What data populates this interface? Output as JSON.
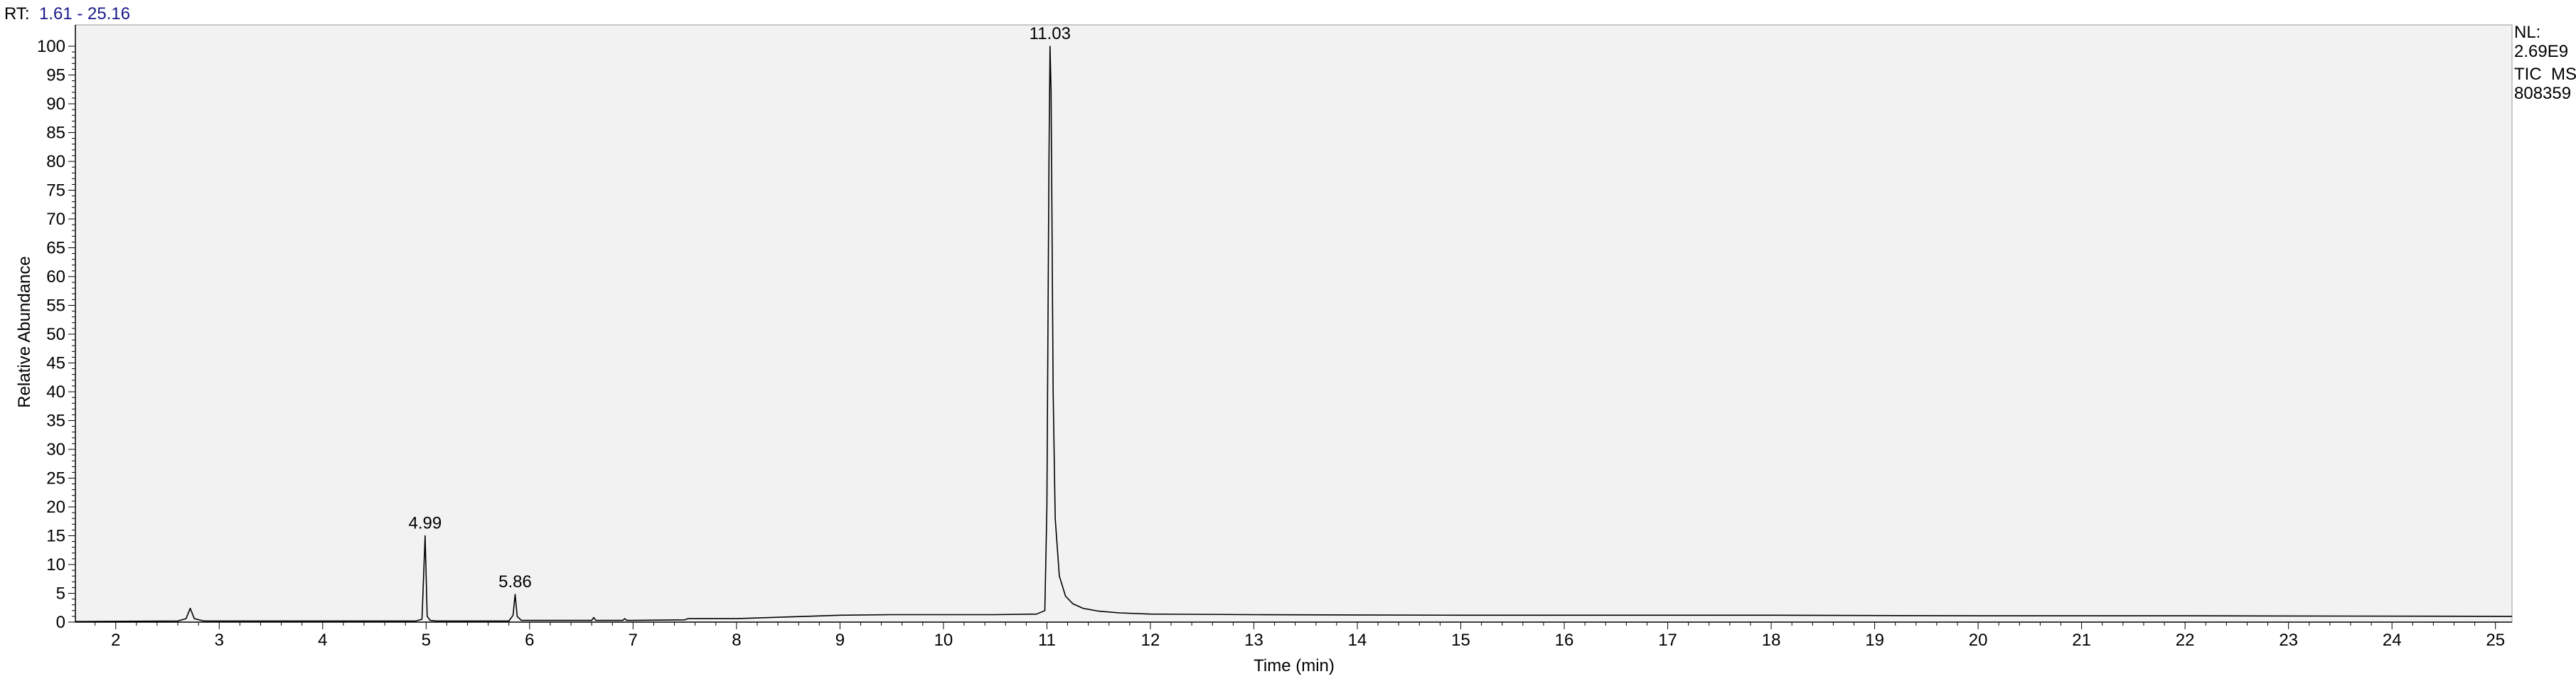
{
  "header": {
    "rt_label": "RT:",
    "rt_range": "1.61 - 25.16"
  },
  "info": {
    "nl_label": "NL:",
    "nl_value": "2.69E9",
    "scan_type": "TIC  MS",
    "file_id": "808359"
  },
  "colors": {
    "plot_background": "#f2f2f2",
    "trace": "#000000",
    "rt_value": "#1a1a8c"
  },
  "chart_data": {
    "type": "line",
    "xlabel": "Time (min)",
    "ylabel": "Relative Abundance",
    "xlim": [
      1.61,
      25.16
    ],
    "ylim": [
      0,
      100
    ],
    "x_ticks": [
      2,
      3,
      4,
      5,
      6,
      7,
      8,
      9,
      10,
      11,
      12,
      13,
      14,
      15,
      16,
      17,
      18,
      19,
      20,
      21,
      22,
      23,
      24,
      25
    ],
    "y_ticks": [
      0,
      5,
      10,
      15,
      20,
      25,
      30,
      35,
      40,
      45,
      50,
      55,
      60,
      65,
      70,
      75,
      80,
      85,
      90,
      95,
      100
    ],
    "grid": false,
    "peak_labels": [
      {
        "x": 4.99,
        "y": 15,
        "text": "4.99"
      },
      {
        "x": 5.86,
        "y": 4.8,
        "text": "5.86"
      },
      {
        "x": 11.03,
        "y": 100,
        "text": "11.03"
      }
    ],
    "series": [
      {
        "x": [
          1.61,
          2.6,
          2.68,
          2.72,
          2.76,
          2.85,
          4.9,
          4.96,
          4.99,
          5.01,
          5.04,
          5.1,
          5.8,
          5.84,
          5.86,
          5.88,
          5.92,
          6.6,
          6.62,
          6.64,
          6.9,
          6.92,
          6.94,
          7.5,
          7.53,
          8.0,
          8.5,
          9.0,
          9.5,
          10.0,
          10.5,
          10.9,
          10.98,
          11.0,
          11.02,
          11.03,
          11.04,
          11.06,
          11.08,
          11.12,
          11.18,
          11.25,
          11.35,
          11.5,
          11.7,
          12.0,
          13.0,
          15.0,
          18.0,
          20.0,
          22.0,
          25.16
        ],
        "y": [
          0.1,
          0.2,
          0.6,
          2.4,
          0.6,
          0.2,
          0.2,
          0.5,
          15,
          1.0,
          0.3,
          0.2,
          0.2,
          1.2,
          4.8,
          1.0,
          0.3,
          0.3,
          0.8,
          0.3,
          0.3,
          0.6,
          0.3,
          0.4,
          0.6,
          0.6,
          0.9,
          1.2,
          1.3,
          1.3,
          1.3,
          1.4,
          2.0,
          20,
          80,
          100,
          92,
          40,
          18,
          8,
          4.5,
          3.2,
          2.4,
          1.9,
          1.6,
          1.4,
          1.3,
          1.2,
          1.2,
          1.1,
          1.1,
          1.0
        ]
      }
    ]
  }
}
